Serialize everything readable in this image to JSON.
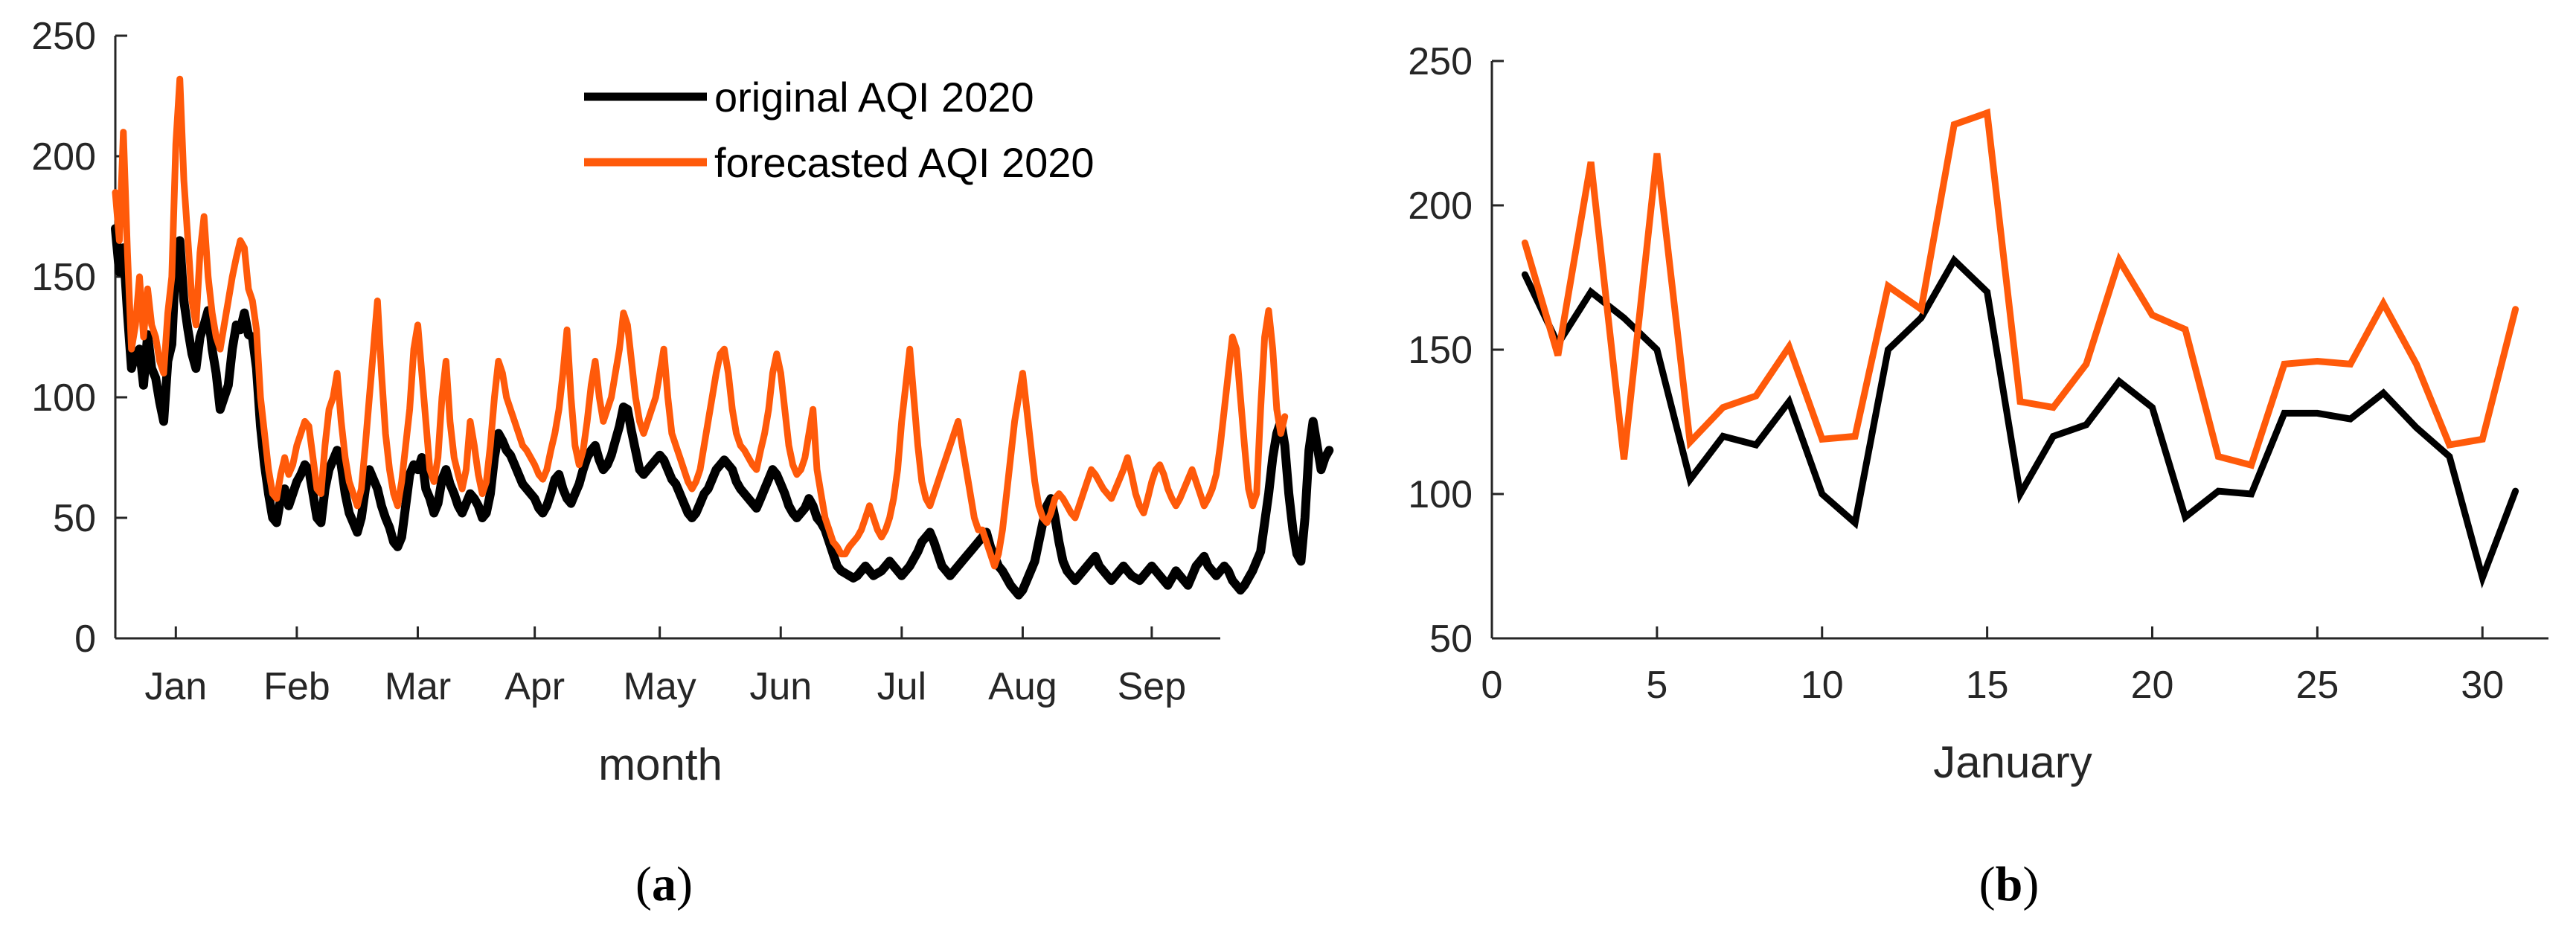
{
  "colors": {
    "original": "#000000",
    "forecast": "#ff5a0a",
    "axis": "#262626"
  },
  "chart_data": [
    {
      "type": "line",
      "panel": "a",
      "panel_label": "a",
      "title": "",
      "xlabel": "month",
      "ylabel": "",
      "ylim": [
        0,
        250
      ],
      "yticks": [
        0,
        50,
        100,
        150,
        200,
        250
      ],
      "xlim_days": [
        1,
        275
      ],
      "xticks": [
        {
          "day": 16,
          "label": "Jan"
        },
        {
          "day": 46,
          "label": "Feb"
        },
        {
          "day": 76,
          "label": "Mar"
        },
        {
          "day": 105,
          "label": "Apr"
        },
        {
          "day": 136,
          "label": "May"
        },
        {
          "day": 166,
          "label": "Jun"
        },
        {
          "day": 196,
          "label": "Jul"
        },
        {
          "day": 226,
          "label": "Aug"
        },
        {
          "day": 258,
          "label": "Sep"
        }
      ],
      "legend_position": "top-right",
      "x_start_day": 1,
      "series": [
        {
          "name": "original AQI 2020",
          "color": "#000000",
          "values": [
            170,
            152,
            162,
            135,
            112,
            118,
            120,
            105,
            126,
            112,
            108,
            98,
            90,
            115,
            122,
            158,
            165,
            140,
            128,
            118,
            112,
            125,
            130,
            136,
            120,
            110,
            95,
            100,
            105,
            120,
            130,
            128,
            135,
            126,
            125,
            112,
            88,
            72,
            60,
            50,
            48,
            58,
            62,
            55,
            60,
            65,
            68,
            72,
            70,
            60,
            50,
            48,
            62,
            70,
            74,
            78,
            72,
            60,
            52,
            48,
            44,
            50,
            62,
            70,
            66,
            62,
            55,
            50,
            46,
            40,
            38,
            42,
            55,
            68,
            72,
            70,
            75,
            62,
            58,
            52,
            56,
            66,
            70,
            64,
            60,
            55,
            52,
            56,
            60,
            58,
            55,
            50,
            52,
            60,
            75,
            85,
            82,
            78,
            76,
            72,
            68,
            64,
            62,
            60,
            58,
            54,
            52,
            55,
            60,
            66,
            68,
            62,
            58,
            56,
            60,
            64,
            70,
            75,
            78,
            80,
            74,
            70,
            72,
            76,
            82,
            88,
            96,
            95,
            86,
            78,
            70,
            68,
            70,
            72,
            74,
            76,
            74,
            70,
            66,
            64,
            60,
            56,
            52,
            50,
            52,
            56,
            60,
            62,
            66,
            70,
            72,
            74,
            72,
            70,
            65,
            62,
            60,
            58,
            56,
            54,
            58,
            62,
            66,
            70,
            68,
            64,
            60,
            55,
            52,
            50,
            52,
            54,
            58,
            55,
            50,
            48,
            45,
            40,
            35,
            30,
            28,
            27,
            26,
            25,
            26,
            28,
            30,
            28,
            26,
            27,
            28,
            30,
            32,
            30,
            28,
            26,
            28,
            30,
            33,
            36,
            40,
            42,
            44,
            40,
            35,
            30,
            28,
            26,
            28,
            30,
            32,
            34,
            36,
            38,
            40,
            42,
            44,
            38,
            34,
            30,
            28,
            25,
            22,
            20,
            18,
            20,
            24,
            28,
            32,
            40,
            48,
            55,
            58,
            50,
            40,
            32,
            28,
            26,
            24,
            26,
            28,
            30,
            32,
            34,
            30,
            28,
            26,
            24,
            26,
            28,
            30,
            28,
            26,
            25,
            24,
            26,
            28,
            30,
            28,
            26,
            24,
            22,
            25,
            28,
            26,
            24,
            22,
            26,
            30,
            32,
            34,
            30,
            28,
            26,
            28,
            30,
            28,
            24,
            22,
            20,
            22,
            25,
            28,
            32,
            36,
            48,
            60,
            75,
            85,
            90,
            80,
            60,
            45,
            35,
            32,
            50,
            78,
            90,
            80,
            70,
            75,
            78
          ]
        },
        {
          "name": "forecasted AQI 2020",
          "color": "#ff5a0a",
          "values": [
            185,
            165,
            210,
            160,
            120,
            130,
            150,
            125,
            145,
            130,
            125,
            115,
            110,
            135,
            150,
            205,
            232,
            190,
            165,
            140,
            130,
            160,
            175,
            150,
            135,
            125,
            120,
            130,
            140,
            150,
            158,
            165,
            162,
            145,
            140,
            128,
            100,
            85,
            70,
            60,
            58,
            68,
            75,
            68,
            72,
            80,
            85,
            90,
            88,
            75,
            62,
            60,
            80,
            95,
            100,
            110,
            90,
            75,
            65,
            60,
            55,
            62,
            80,
            100,
            120,
            140,
            110,
            85,
            70,
            60,
            55,
            65,
            80,
            95,
            120,
            130,
            110,
            90,
            70,
            65,
            75,
            100,
            115,
            90,
            75,
            68,
            62,
            70,
            90,
            80,
            68,
            60,
            65,
            80,
            100,
            115,
            110,
            100,
            95,
            90,
            85,
            80,
            78,
            75,
            72,
            68,
            66,
            70,
            78,
            85,
            95,
            110,
            128,
            100,
            80,
            72,
            78,
            90,
            105,
            115,
            100,
            90,
            95,
            100,
            110,
            120,
            135,
            130,
            115,
            100,
            90,
            85,
            90,
            95,
            100,
            110,
            120,
            100,
            85,
            80,
            75,
            70,
            65,
            62,
            65,
            70,
            80,
            90,
            100,
            110,
            118,
            120,
            110,
            95,
            85,
            80,
            78,
            75,
            72,
            70,
            78,
            85,
            95,
            110,
            118,
            110,
            95,
            80,
            72,
            68,
            70,
            75,
            85,
            95,
            70,
            60,
            50,
            45,
            40,
            38,
            35,
            35,
            38,
            40,
            42,
            45,
            50,
            55,
            50,
            45,
            42,
            45,
            50,
            58,
            70,
            90,
            105,
            120,
            100,
            80,
            65,
            58,
            55,
            60,
            65,
            70,
            75,
            80,
            85,
            90,
            80,
            70,
            60,
            50,
            45,
            45,
            40,
            35,
            30,
            35,
            45,
            60,
            75,
            90,
            100,
            110,
            95,
            80,
            65,
            55,
            50,
            48,
            52,
            58,
            60,
            58,
            55,
            52,
            50,
            55,
            60,
            65,
            70,
            68,
            65,
            62,
            60,
            58,
            62,
            66,
            70,
            75,
            68,
            60,
            55,
            52,
            58,
            65,
            70,
            72,
            68,
            62,
            58,
            55,
            58,
            62,
            66,
            70,
            65,
            60,
            55,
            58,
            62,
            68,
            80,
            95,
            110,
            125,
            120,
            100,
            80,
            62,
            55,
            60,
            95,
            125,
            136,
            120,
            95,
            85,
            92
          ]
        }
      ]
    },
    {
      "type": "line",
      "panel": "b",
      "panel_label": "b",
      "title": "",
      "xlabel": "January",
      "ylabel": "",
      "xlim": [
        0,
        32
      ],
      "ylim": [
        50,
        250
      ],
      "xticks": [
        0,
        5,
        10,
        15,
        20,
        25,
        30
      ],
      "yticks": [
        50,
        100,
        150,
        200,
        250
      ],
      "x": [
        1,
        2,
        3,
        4,
        5,
        6,
        7,
        8,
        9,
        10,
        11,
        12,
        13,
        14,
        15,
        16,
        17,
        18,
        19,
        20,
        21,
        22,
        23,
        24,
        25,
        26,
        27,
        28,
        29,
        30,
        31
      ],
      "series": [
        {
          "name": "original AQI 2020",
          "color": "#000000",
          "values": [
            176,
            152,
            170,
            161,
            150,
            105,
            120,
            117,
            132,
            100,
            90,
            150,
            161,
            181,
            170,
            100,
            120,
            124,
            139,
            130,
            92,
            101,
            100,
            128,
            128,
            126,
            135,
            123,
            113,
            71,
            101
          ]
        },
        {
          "name": "forecasted AQI 2020",
          "color": "#ff5a0a",
          "values": [
            187,
            148,
            215,
            112,
            218,
            118,
            130,
            134,
            151,
            119,
            120,
            172,
            164,
            228,
            232,
            132,
            130,
            145,
            181,
            162,
            157,
            113,
            110,
            145,
            146,
            145,
            166,
            145,
            117,
            119,
            164
          ]
        }
      ]
    }
  ]
}
